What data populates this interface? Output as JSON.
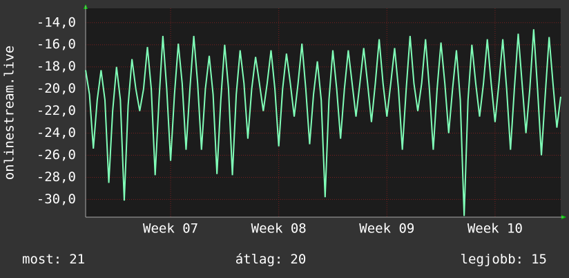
{
  "chart_data": {
    "type": "line",
    "ylabel": "onlinestream.live",
    "x": [
      0,
      0.25,
      0.5,
      0.75,
      1,
      1.25,
      1.5,
      1.75,
      2,
      2.25,
      2.5,
      2.75,
      3,
      3.25,
      3.5,
      3.75,
      4,
      4.25,
      4.5,
      4.75,
      5,
      5.25,
      5.5,
      5.75,
      6,
      6.25,
      6.5,
      6.75,
      7,
      7.25,
      7.5,
      7.75,
      8,
      8.25,
      8.5,
      8.75,
      9,
      9.25,
      9.5,
      9.75,
      10,
      10.25,
      10.5,
      10.75,
      11,
      11.25,
      11.5,
      11.75,
      12,
      12.25,
      12.5,
      12.75,
      13,
      13.25,
      13.5,
      13.75,
      14,
      14.25,
      14.5,
      14.75,
      15,
      15.25,
      15.5,
      15.75,
      16,
      16.25,
      16.5,
      16.75,
      17,
      17.25,
      17.5,
      17.75,
      18,
      18.25,
      18.5,
      18.75,
      19,
      19.25,
      19.5,
      19.75,
      20,
      20.25,
      20.5,
      20.75,
      21,
      21.25,
      21.5,
      21.75,
      22,
      22.25,
      22.5,
      22.75,
      23,
      23.25,
      23.5,
      23.75,
      24,
      24.25,
      24.5,
      24.75,
      25,
      25.25,
      25.5,
      25.75,
      26,
      26.25,
      26.5,
      26.75,
      27,
      27.25,
      27.5,
      27.75,
      28,
      28.25,
      28.5,
      28.75,
      29,
      29.25,
      29.5,
      29.75,
      30,
      30.25,
      30.5,
      30.75
    ],
    "series": [
      {
        "name": "onlinestream.live",
        "color": "#80ffb8",
        "values": [
          -18.3,
          -20.5,
          -25.4,
          -21,
          -18.3,
          -21,
          -28.5,
          -22,
          -18,
          -21,
          -30.1,
          -21.5,
          -17.3,
          -20,
          -22,
          -20,
          -16.2,
          -20,
          -27.8,
          -21,
          -15.2,
          -20,
          -26.5,
          -20.5,
          -15.9,
          -19.5,
          -25.5,
          -20,
          -15.2,
          -19.5,
          -25.5,
          -20,
          -17,
          -20.5,
          -27.7,
          -21,
          -16,
          -20,
          -27.8,
          -20.5,
          -16.5,
          -19.5,
          -24.5,
          -20,
          -17.1,
          -19.5,
          -22,
          -19.5,
          -16.5,
          -20,
          -25.2,
          -20,
          -16.8,
          -19.5,
          -22.5,
          -19.5,
          -15.9,
          -20,
          -25,
          -20.5,
          -17.5,
          -21,
          -29.8,
          -21,
          -16.5,
          -20,
          -24.5,
          -20,
          -16.5,
          -19.5,
          -22.5,
          -19.5,
          -16.3,
          -19.5,
          -23,
          -19.5,
          -15.5,
          -19.5,
          -22.5,
          -19.5,
          -16.3,
          -20,
          -25.5,
          -20,
          -15.2,
          -19.5,
          -22,
          -19.5,
          -15.5,
          -20,
          -25.5,
          -20,
          -15.8,
          -19.5,
          -24,
          -20,
          -16.5,
          -21,
          -31.5,
          -21,
          -16,
          -19.5,
          -22.5,
          -19.5,
          -15.5,
          -19.5,
          -23,
          -19.5,
          -15.5,
          -20,
          -25.5,
          -20,
          -15,
          -19.5,
          -24,
          -20,
          -14.6,
          -20,
          -26,
          -20.5,
          -15.3,
          -19.5,
          -23.5,
          -20.7
        ]
      }
    ],
    "xlim": [
      0,
      30.75
    ],
    "xticks": [
      {
        "value": 5.5,
        "label": "Week 07"
      },
      {
        "value": 12.5,
        "label": "Week 08"
      },
      {
        "value": 19.5,
        "label": "Week 09"
      },
      {
        "value": 26.5,
        "label": "Week 10"
      }
    ],
    "ylim": [
      -31.6,
      -12.7
    ],
    "yticks": [
      {
        "value": -30,
        "label": "-30,0"
      },
      {
        "value": -28,
        "label": "-28,0"
      },
      {
        "value": -26,
        "label": "-26,0"
      },
      {
        "value": -24,
        "label": "-24,0"
      },
      {
        "value": -22,
        "label": "-22,0"
      },
      {
        "value": -20,
        "label": "-20,0"
      },
      {
        "value": -18,
        "label": "-18,0"
      },
      {
        "value": -16,
        "label": "-16,0"
      },
      {
        "value": -14,
        "label": "-14,0"
      }
    ],
    "grid": true,
    "stats": [
      {
        "label": "most:",
        "value": 21
      },
      {
        "label": "átlag:",
        "value": 20
      },
      {
        "label": "legjobb:",
        "value": 15
      }
    ]
  }
}
